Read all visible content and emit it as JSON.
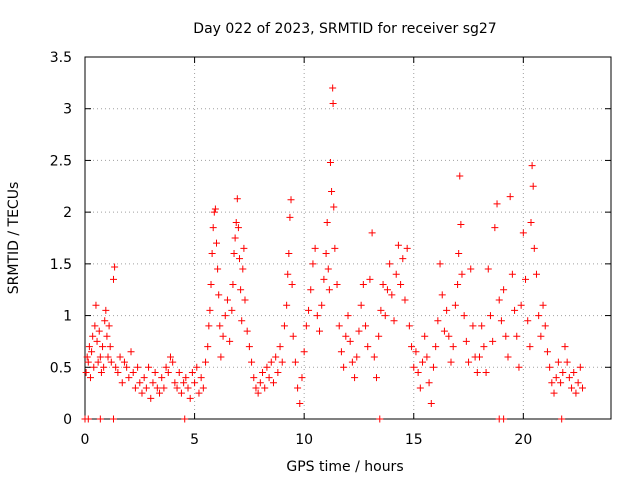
{
  "chart_data": {
    "type": "scatter",
    "title": "Day 022 of 2023, SRMTID for receiver sg27",
    "xlabel": "GPS time / hours",
    "ylabel": "SRMTID / TECUs",
    "xlim": [
      0,
      24
    ],
    "ylim": [
      0,
      3.5
    ],
    "x_ticks": [
      0,
      5,
      10,
      15,
      20
    ],
    "x_tick_labels": [
      "0",
      "5",
      "10",
      "15",
      "20"
    ],
    "y_ticks": [
      0,
      0.5,
      1,
      1.5,
      2,
      2.5,
      3,
      3.5
    ],
    "y_tick_labels": [
      "0",
      "0.5",
      "1",
      "1.5",
      "2",
      "2.5",
      "3",
      "3.5"
    ],
    "grid": true,
    "marker": "+",
    "color": "#ff0000",
    "series": [
      {
        "name": "SRMTID",
        "points": [
          [
            0.05,
            0.45
          ],
          [
            0.1,
            0.6
          ],
          [
            0.15,
            0.55
          ],
          [
            0.2,
            0.7
          ],
          [
            0.25,
            0.4
          ],
          [
            0.3,
            0.65
          ],
          [
            0.35,
            0.8
          ],
          [
            0.4,
            0.5
          ],
          [
            0.45,
            0.9
          ],
          [
            0.5,
            1.1
          ],
          [
            0.55,
            0.75
          ],
          [
            0.6,
            0.55
          ],
          [
            0.65,
            0.85
          ],
          [
            0.7,
            0.6
          ],
          [
            0.75,
            0.45
          ],
          [
            0.8,
            0.7
          ],
          [
            0.85,
            0.5
          ],
          [
            0.9,
            0.95
          ],
          [
            0.95,
            1.05
          ],
          [
            1.0,
            0.8
          ],
          [
            1.05,
            0.6
          ],
          [
            1.1,
            0.9
          ],
          [
            1.15,
            0.7
          ],
          [
            1.2,
            0.55
          ],
          [
            1.3,
            1.35
          ],
          [
            1.35,
            1.47
          ],
          [
            1.4,
            0.5
          ],
          [
            1.5,
            0.45
          ],
          [
            1.6,
            0.6
          ],
          [
            1.7,
            0.35
          ],
          [
            1.8,
            0.55
          ],
          [
            1.9,
            0.5
          ],
          [
            2.0,
            0.4
          ],
          [
            2.1,
            0.65
          ],
          [
            2.2,
            0.45
          ],
          [
            2.3,
            0.3
          ],
          [
            2.4,
            0.5
          ],
          [
            2.5,
            0.35
          ],
          [
            2.6,
            0.25
          ],
          [
            2.7,
            0.4
          ],
          [
            2.8,
            0.3
          ],
          [
            2.9,
            0.5
          ],
          [
            3.0,
            0.2
          ],
          [
            3.1,
            0.35
          ],
          [
            3.2,
            0.45
          ],
          [
            3.3,
            0.3
          ],
          [
            3.4,
            0.25
          ],
          [
            3.5,
            0.4
          ],
          [
            3.6,
            0.3
          ],
          [
            3.7,
            0.5
          ],
          [
            3.8,
            0.45
          ],
          [
            3.9,
            0.6
          ],
          [
            4.0,
            0.55
          ],
          [
            4.1,
            0.35
          ],
          [
            4.2,
            0.3
          ],
          [
            4.3,
            0.45
          ],
          [
            4.4,
            0.25
          ],
          [
            4.5,
            0.35
          ],
          [
            4.6,
            0.4
          ],
          [
            4.7,
            0.3
          ],
          [
            4.8,
            0.2
          ],
          [
            4.9,
            0.45
          ],
          [
            5.0,
            0.35
          ],
          [
            5.1,
            0.5
          ],
          [
            5.2,
            0.25
          ],
          [
            5.3,
            0.4
          ],
          [
            5.4,
            0.3
          ],
          [
            5.5,
            0.55
          ],
          [
            5.6,
            0.7
          ],
          [
            5.65,
            0.9
          ],
          [
            5.7,
            1.05
          ],
          [
            5.75,
            1.3
          ],
          [
            5.8,
            1.6
          ],
          [
            5.85,
            1.85
          ],
          [
            5.9,
            2.0
          ],
          [
            5.95,
            2.03
          ],
          [
            6.0,
            1.7
          ],
          [
            6.05,
            1.45
          ],
          [
            6.1,
            1.2
          ],
          [
            6.15,
            0.9
          ],
          [
            6.2,
            0.6
          ],
          [
            6.3,
            0.8
          ],
          [
            6.4,
            1.0
          ],
          [
            6.5,
            1.15
          ],
          [
            6.6,
            0.75
          ],
          [
            6.7,
            1.05
          ],
          [
            6.75,
            1.3
          ],
          [
            6.8,
            1.6
          ],
          [
            6.85,
            1.75
          ],
          [
            6.9,
            1.9
          ],
          [
            6.95,
            2.13
          ],
          [
            7.0,
            1.85
          ],
          [
            7.05,
            1.55
          ],
          [
            7.1,
            1.25
          ],
          [
            7.15,
            0.95
          ],
          [
            7.2,
            1.45
          ],
          [
            7.25,
            1.65
          ],
          [
            7.3,
            1.15
          ],
          [
            7.4,
            0.85
          ],
          [
            7.5,
            0.7
          ],
          [
            7.6,
            0.55
          ],
          [
            7.7,
            0.4
          ],
          [
            7.8,
            0.3
          ],
          [
            7.9,
            0.25
          ],
          [
            8.0,
            0.35
          ],
          [
            8.1,
            0.45
          ],
          [
            8.2,
            0.3
          ],
          [
            8.3,
            0.5
          ],
          [
            8.4,
            0.4
          ],
          [
            8.5,
            0.55
          ],
          [
            8.6,
            0.35
          ],
          [
            8.7,
            0.6
          ],
          [
            8.8,
            0.45
          ],
          [
            8.9,
            0.7
          ],
          [
            9.0,
            0.55
          ],
          [
            9.1,
            0.9
          ],
          [
            9.2,
            1.1
          ],
          [
            9.25,
            1.4
          ],
          [
            9.3,
            1.6
          ],
          [
            9.35,
            1.95
          ],
          [
            9.4,
            2.12
          ],
          [
            9.45,
            1.3
          ],
          [
            9.5,
            0.8
          ],
          [
            9.6,
            0.55
          ],
          [
            9.7,
            0.3
          ],
          [
            9.8,
            0.15
          ],
          [
            9.9,
            0.4
          ],
          [
            10.0,
            0.65
          ],
          [
            10.1,
            0.9
          ],
          [
            10.2,
            1.05
          ],
          [
            10.3,
            1.25
          ],
          [
            10.4,
            1.5
          ],
          [
            10.5,
            1.65
          ],
          [
            10.6,
            1.0
          ],
          [
            10.7,
            0.85
          ],
          [
            10.8,
            1.1
          ],
          [
            10.9,
            1.35
          ],
          [
            11.0,
            1.6
          ],
          [
            11.05,
            1.9
          ],
          [
            11.1,
            1.45
          ],
          [
            11.15,
            1.25
          ],
          [
            11.2,
            2.48
          ],
          [
            11.25,
            2.2
          ],
          [
            11.3,
            3.2
          ],
          [
            11.32,
            3.05
          ],
          [
            11.35,
            2.05
          ],
          [
            11.4,
            1.65
          ],
          [
            11.5,
            1.3
          ],
          [
            11.6,
            0.9
          ],
          [
            11.7,
            0.65
          ],
          [
            11.8,
            0.5
          ],
          [
            11.9,
            0.8
          ],
          [
            12.0,
            1.0
          ],
          [
            12.1,
            0.75
          ],
          [
            12.2,
            0.55
          ],
          [
            12.3,
            0.4
          ],
          [
            12.4,
            0.6
          ],
          [
            12.5,
            0.85
          ],
          [
            12.6,
            1.1
          ],
          [
            12.7,
            1.3
          ],
          [
            12.8,
            0.9
          ],
          [
            12.9,
            0.7
          ],
          [
            13.0,
            1.35
          ],
          [
            13.1,
            1.8
          ],
          [
            13.2,
            0.6
          ],
          [
            13.3,
            0.4
          ],
          [
            13.4,
            0.8
          ],
          [
            13.5,
            1.05
          ],
          [
            13.6,
            1.3
          ],
          [
            13.7,
            1.0
          ],
          [
            13.8,
            1.25
          ],
          [
            13.9,
            1.5
          ],
          [
            14.0,
            1.2
          ],
          [
            14.1,
            0.95
          ],
          [
            14.2,
            1.4
          ],
          [
            14.3,
            1.68
          ],
          [
            14.4,
            1.3
          ],
          [
            14.5,
            1.55
          ],
          [
            14.6,
            1.15
          ],
          [
            14.7,
            1.65
          ],
          [
            14.8,
            0.9
          ],
          [
            14.9,
            0.7
          ],
          [
            15.0,
            0.5
          ],
          [
            15.1,
            0.65
          ],
          [
            15.2,
            0.45
          ],
          [
            15.3,
            0.3
          ],
          [
            15.4,
            0.55
          ],
          [
            15.5,
            0.8
          ],
          [
            15.6,
            0.6
          ],
          [
            15.7,
            0.35
          ],
          [
            15.8,
            0.15
          ],
          [
            15.9,
            0.5
          ],
          [
            16.0,
            0.7
          ],
          [
            16.1,
            0.95
          ],
          [
            16.2,
            1.5
          ],
          [
            16.3,
            1.2
          ],
          [
            16.4,
            0.85
          ],
          [
            16.5,
            1.05
          ],
          [
            16.6,
            0.8
          ],
          [
            16.7,
            0.55
          ],
          [
            16.8,
            0.7
          ],
          [
            16.9,
            1.1
          ],
          [
            17.0,
            1.3
          ],
          [
            17.05,
            1.6
          ],
          [
            17.1,
            2.35
          ],
          [
            17.15,
            1.88
          ],
          [
            17.2,
            1.4
          ],
          [
            17.3,
            1.0
          ],
          [
            17.4,
            0.75
          ],
          [
            17.5,
            0.55
          ],
          [
            17.6,
            1.45
          ],
          [
            17.7,
            0.9
          ],
          [
            17.8,
            0.6
          ],
          [
            17.9,
            0.45
          ],
          [
            18.0,
            0.6
          ],
          [
            18.1,
            0.9
          ],
          [
            18.2,
            0.7
          ],
          [
            18.3,
            0.45
          ],
          [
            18.4,
            1.45
          ],
          [
            18.5,
            1.0
          ],
          [
            18.6,
            0.75
          ],
          [
            18.7,
            1.85
          ],
          [
            18.8,
            2.08
          ],
          [
            18.9,
            1.15
          ],
          [
            19.0,
            0.95
          ],
          [
            19.1,
            1.25
          ],
          [
            19.2,
            0.8
          ],
          [
            19.3,
            0.6
          ],
          [
            19.4,
            2.15
          ],
          [
            19.5,
            1.4
          ],
          [
            19.6,
            1.05
          ],
          [
            19.7,
            0.8
          ],
          [
            19.8,
            0.5
          ],
          [
            19.9,
            1.1
          ],
          [
            20.0,
            1.8
          ],
          [
            20.1,
            1.35
          ],
          [
            20.2,
            0.95
          ],
          [
            20.3,
            0.7
          ],
          [
            20.35,
            1.9
          ],
          [
            20.4,
            2.45
          ],
          [
            20.45,
            2.25
          ],
          [
            20.5,
            1.65
          ],
          [
            20.6,
            1.4
          ],
          [
            20.7,
            1.0
          ],
          [
            20.8,
            0.8
          ],
          [
            20.9,
            1.1
          ],
          [
            21.0,
            0.9
          ],
          [
            21.1,
            0.65
          ],
          [
            21.2,
            0.5
          ],
          [
            21.3,
            0.35
          ],
          [
            21.4,
            0.25
          ],
          [
            21.5,
            0.4
          ],
          [
            21.6,
            0.55
          ],
          [
            21.7,
            0.35
          ],
          [
            21.8,
            0.45
          ],
          [
            21.9,
            0.7
          ],
          [
            22.0,
            0.55
          ],
          [
            22.1,
            0.4
          ],
          [
            22.2,
            0.3
          ],
          [
            22.3,
            0.45
          ],
          [
            22.4,
            0.25
          ],
          [
            22.5,
            0.35
          ],
          [
            22.6,
            0.5
          ],
          [
            22.7,
            0.3
          ],
          [
            0.0,
            0.0
          ],
          [
            0.15,
            0.0
          ],
          [
            0.7,
            0.0
          ],
          [
            1.3,
            0.0
          ],
          [
            4.55,
            0.0
          ],
          [
            13.45,
            0.0
          ],
          [
            18.9,
            0.0
          ],
          [
            19.1,
            0.0
          ],
          [
            21.75,
            0.0
          ]
        ]
      }
    ]
  }
}
